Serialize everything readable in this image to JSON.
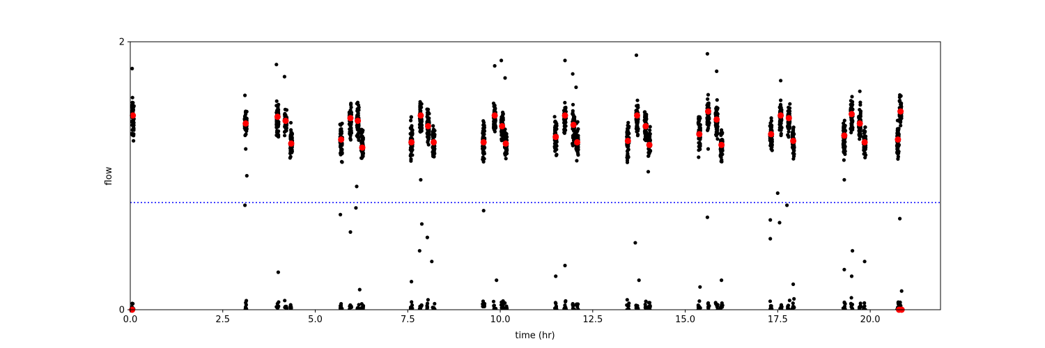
{
  "chart_data": {
    "type": "scatter",
    "title": "",
    "xlabel": "time (hr)",
    "ylabel": "flow",
    "xlim": [
      0,
      21.9
    ],
    "ylim": [
      0,
      2
    ],
    "x_ticks": [
      0,
      2.5,
      5,
      7.5,
      10,
      12.5,
      15,
      17.5,
      20
    ],
    "x_tick_labels": [
      "0.0",
      "2.5",
      "5.0",
      "7.5",
      "10.0",
      "12.5",
      "15.0",
      "17.5",
      "20.0"
    ],
    "y_ticks": [
      0,
      2
    ],
    "y_tick_labels": [
      "0",
      "2"
    ],
    "grid": false,
    "threshold": {
      "y": 0.8,
      "color": "#0000ff",
      "style": "dotted"
    },
    "raw_color": "#000000",
    "mean_color": "#ff0000",
    "clusters": [
      {
        "x": 0.07,
        "center": 1.42,
        "spread": 0.13
      },
      {
        "x": 3.12,
        "center": 1.39,
        "spread": 0.07
      },
      {
        "x": 3.98,
        "center": 1.43,
        "spread": 0.11
      },
      {
        "x": 4.2,
        "center": 1.4,
        "spread": 0.08
      },
      {
        "x": 4.35,
        "center": 1.25,
        "spread": 0.1
      },
      {
        "x": 5.7,
        "center": 1.27,
        "spread": 0.12
      },
      {
        "x": 5.95,
        "center": 1.41,
        "spread": 0.12
      },
      {
        "x": 6.15,
        "center": 1.4,
        "spread": 0.12
      },
      {
        "x": 6.27,
        "center": 1.21,
        "spread": 0.1
      },
      {
        "x": 7.6,
        "center": 1.26,
        "spread": 0.13
      },
      {
        "x": 7.85,
        "center": 1.43,
        "spread": 0.1
      },
      {
        "x": 8.05,
        "center": 1.36,
        "spread": 0.1
      },
      {
        "x": 8.2,
        "center": 1.25,
        "spread": 0.1
      },
      {
        "x": 9.55,
        "center": 1.26,
        "spread": 0.12
      },
      {
        "x": 9.85,
        "center": 1.44,
        "spread": 0.1
      },
      {
        "x": 10.05,
        "center": 1.37,
        "spread": 0.11
      },
      {
        "x": 10.15,
        "center": 1.24,
        "spread": 0.1
      },
      {
        "x": 11.5,
        "center": 1.29,
        "spread": 0.12
      },
      {
        "x": 11.75,
        "center": 1.43,
        "spread": 0.1
      },
      {
        "x": 11.98,
        "center": 1.37,
        "spread": 0.1
      },
      {
        "x": 12.08,
        "center": 1.25,
        "spread": 0.1
      },
      {
        "x": 13.45,
        "center": 1.26,
        "spread": 0.12
      },
      {
        "x": 13.7,
        "center": 1.43,
        "spread": 0.1
      },
      {
        "x": 13.93,
        "center": 1.37,
        "spread": 0.1
      },
      {
        "x": 14.03,
        "center": 1.23,
        "spread": 0.1
      },
      {
        "x": 15.38,
        "center": 1.31,
        "spread": 0.12
      },
      {
        "x": 15.62,
        "center": 1.45,
        "spread": 0.1
      },
      {
        "x": 15.85,
        "center": 1.41,
        "spread": 0.1
      },
      {
        "x": 15.98,
        "center": 1.23,
        "spread": 0.1
      },
      {
        "x": 17.32,
        "center": 1.3,
        "spread": 0.12
      },
      {
        "x": 17.58,
        "center": 1.44,
        "spread": 0.1
      },
      {
        "x": 17.8,
        "center": 1.41,
        "spread": 0.1
      },
      {
        "x": 17.92,
        "center": 1.25,
        "spread": 0.1
      },
      {
        "x": 19.3,
        "center": 1.29,
        "spread": 0.12
      },
      {
        "x": 19.5,
        "center": 1.44,
        "spread": 0.1
      },
      {
        "x": 19.72,
        "center": 1.39,
        "spread": 0.1
      },
      {
        "x": 19.85,
        "center": 1.25,
        "spread": 0.1
      },
      {
        "x": 20.75,
        "center": 1.27,
        "spread": 0.12
      },
      {
        "x": 20.82,
        "center": 1.48,
        "spread": 0.1
      }
    ],
    "outliers": [
      {
        "x": 0.05,
        "y": 1.8
      },
      {
        "x": 3.1,
        "y": 1.6
      },
      {
        "x": 3.12,
        "y": 1.2
      },
      {
        "x": 3.15,
        "y": 1.0
      },
      {
        "x": 3.1,
        "y": 0.78
      },
      {
        "x": 3.95,
        "y": 1.83
      },
      {
        "x": 4.17,
        "y": 1.74
      },
      {
        "x": 5.68,
        "y": 0.71
      },
      {
        "x": 5.95,
        "y": 0.58
      },
      {
        "x": 6.12,
        "y": 0.92
      },
      {
        "x": 6.1,
        "y": 0.76
      },
      {
        "x": 7.85,
        "y": 0.97
      },
      {
        "x": 7.88,
        "y": 0.64
      },
      {
        "x": 7.82,
        "y": 0.44
      },
      {
        "x": 8.03,
        "y": 0.54
      },
      {
        "x": 8.15,
        "y": 0.36
      },
      {
        "x": 9.55,
        "y": 0.74
      },
      {
        "x": 9.85,
        "y": 1.82
      },
      {
        "x": 10.03,
        "y": 1.86
      },
      {
        "x": 10.13,
        "y": 1.73
      },
      {
        "x": 11.75,
        "y": 1.86
      },
      {
        "x": 11.96,
        "y": 1.76
      },
      {
        "x": 12.05,
        "y": 1.66
      },
      {
        "x": 13.68,
        "y": 1.9
      },
      {
        "x": 13.65,
        "y": 0.5
      },
      {
        "x": 14.0,
        "y": 1.03
      },
      {
        "x": 15.6,
        "y": 1.91
      },
      {
        "x": 15.85,
        "y": 1.78
      },
      {
        "x": 15.6,
        "y": 0.69
      },
      {
        "x": 15.62,
        "y": 1.2
      },
      {
        "x": 17.5,
        "y": 0.87
      },
      {
        "x": 17.55,
        "y": 0.65
      },
      {
        "x": 17.3,
        "y": 0.67
      },
      {
        "x": 17.3,
        "y": 0.53
      },
      {
        "x": 17.75,
        "y": 0.78
      },
      {
        "x": 17.58,
        "y": 1.71
      },
      {
        "x": 19.3,
        "y": 0.97
      },
      {
        "x": 19.52,
        "y": 0.44
      },
      {
        "x": 19.72,
        "y": 1.63
      },
      {
        "x": 20.8,
        "y": 0.68
      },
      {
        "x": 4.0,
        "y": 0.28
      },
      {
        "x": 6.2,
        "y": 0.15
      },
      {
        "x": 7.6,
        "y": 0.21
      },
      {
        "x": 9.9,
        "y": 0.22
      },
      {
        "x": 11.5,
        "y": 0.25
      },
      {
        "x": 11.75,
        "y": 0.33
      },
      {
        "x": 13.75,
        "y": 0.22
      },
      {
        "x": 15.4,
        "y": 0.17
      },
      {
        "x": 15.98,
        "y": 0.22
      },
      {
        "x": 17.92,
        "y": 0.19
      },
      {
        "x": 19.3,
        "y": 0.3
      },
      {
        "x": 19.5,
        "y": 0.25
      },
      {
        "x": 19.85,
        "y": 0.36
      },
      {
        "x": 20.85,
        "y": 0.14
      }
    ],
    "low_clusters": [
      0.07,
      3.12,
      3.98,
      4.2,
      4.35,
      5.7,
      5.95,
      6.15,
      6.27,
      7.6,
      7.85,
      8.05,
      8.2,
      9.55,
      9.85,
      10.05,
      10.15,
      11.5,
      11.75,
      11.98,
      12.08,
      13.45,
      13.7,
      13.93,
      14.03,
      15.38,
      15.62,
      15.85,
      15.98,
      17.32,
      17.58,
      17.8,
      17.92,
      19.3,
      19.5,
      19.72,
      19.85,
      20.75,
      20.82
    ],
    "means": [
      {
        "x": 0.07,
        "y": 1.45
      },
      {
        "x": 3.12,
        "y": 1.39
      },
      {
        "x": 3.98,
        "y": 1.44
      },
      {
        "x": 4.2,
        "y": 1.41
      },
      {
        "x": 4.35,
        "y": 1.24
      },
      {
        "x": 5.7,
        "y": 1.27
      },
      {
        "x": 5.95,
        "y": 1.43
      },
      {
        "x": 6.15,
        "y": 1.41
      },
      {
        "x": 6.27,
        "y": 1.21
      },
      {
        "x": 7.6,
        "y": 1.25
      },
      {
        "x": 7.85,
        "y": 1.45
      },
      {
        "x": 8.05,
        "y": 1.37
      },
      {
        "x": 8.2,
        "y": 1.25
      },
      {
        "x": 9.55,
        "y": 1.25
      },
      {
        "x": 9.85,
        "y": 1.45
      },
      {
        "x": 10.05,
        "y": 1.37
      },
      {
        "x": 10.15,
        "y": 1.24
      },
      {
        "x": 11.5,
        "y": 1.29
      },
      {
        "x": 11.75,
        "y": 1.45
      },
      {
        "x": 11.98,
        "y": 1.38
      },
      {
        "x": 12.08,
        "y": 1.25
      },
      {
        "x": 13.45,
        "y": 1.26
      },
      {
        "x": 13.7,
        "y": 1.45
      },
      {
        "x": 13.93,
        "y": 1.37
      },
      {
        "x": 14.03,
        "y": 1.23
      },
      {
        "x": 15.38,
        "y": 1.31
      },
      {
        "x": 15.62,
        "y": 1.48
      },
      {
        "x": 15.85,
        "y": 1.42
      },
      {
        "x": 15.98,
        "y": 1.23
      },
      {
        "x": 17.32,
        "y": 1.31
      },
      {
        "x": 17.58,
        "y": 1.45
      },
      {
        "x": 17.8,
        "y": 1.43
      },
      {
        "x": 17.92,
        "y": 1.26
      },
      {
        "x": 19.3,
        "y": 1.3
      },
      {
        "x": 19.5,
        "y": 1.46
      },
      {
        "x": 19.72,
        "y": 1.39
      },
      {
        "x": 19.85,
        "y": 1.25
      },
      {
        "x": 20.75,
        "y": 1.27
      },
      {
        "x": 20.82,
        "y": 1.48
      },
      {
        "x": 0.05,
        "y": 0.0
      },
      {
        "x": 20.78,
        "y": 0.0
      },
      {
        "x": 20.85,
        "y": 0.0
      }
    ]
  }
}
